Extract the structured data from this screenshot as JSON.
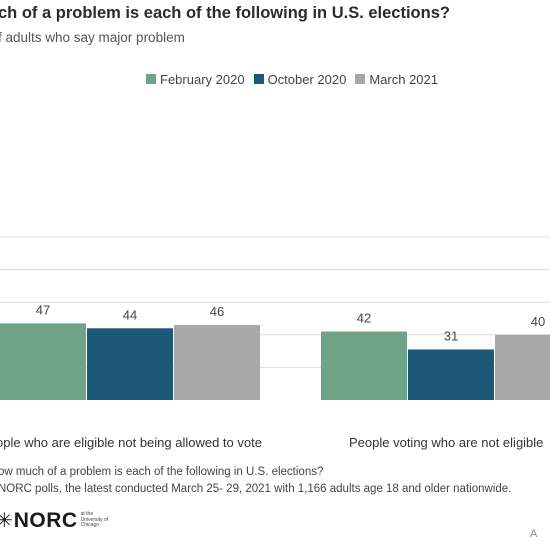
{
  "header": {
    "title": "ch of a problem is each of the following in U.S. elections?",
    "subtitle": "f adults who say major problem"
  },
  "colors": {
    "february_2020": "#6fa388",
    "october_2020": "#1b5878",
    "march_2021": "#a8a8a8",
    "gridline": "#dcdcdc"
  },
  "chart_data": {
    "type": "bar",
    "categories": [
      "ople who are eligible not being allowed to vote",
      "People voting who are not eligible"
    ],
    "series": [
      {
        "name": "February 2020",
        "values": [
          47,
          42
        ]
      },
      {
        "name": "October 2020",
        "values": [
          44,
          31
        ]
      },
      {
        "name": "March 2021",
        "values": [
          46,
          40
        ]
      }
    ],
    "ylim": [
      0,
      100
    ],
    "grid": true,
    "legend": "top"
  },
  "footnotes": {
    "line1": "ow much of a problem is each of the following in U.S. elections?",
    "line2": "NORC polls, the latest conducted March 25- 29, 2021 with 1,166 adults age 18 and older nationwide."
  },
  "logo": {
    "mark": "✳",
    "name": "NORC",
    "sub": "at the University of Chicago"
  },
  "corner_letter": "A"
}
